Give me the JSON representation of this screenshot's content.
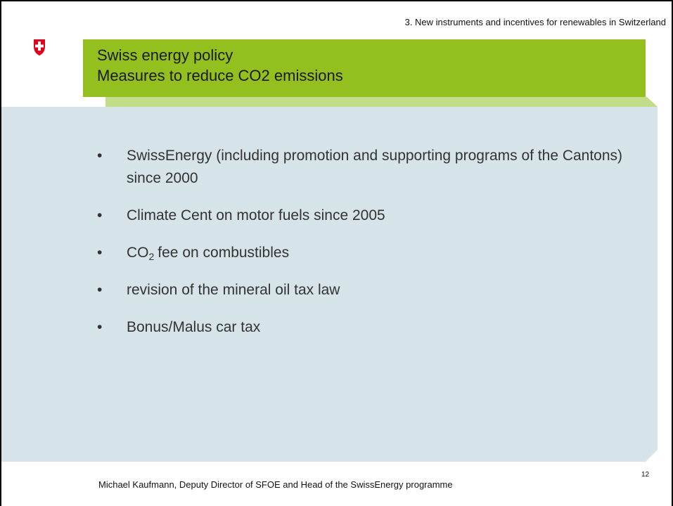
{
  "header": {
    "section": "3. New instruments and incentives for renewables in Switzerland",
    "title_lines": [
      "Swiss energy policy",
      "Measures to reduce CO2 emissions"
    ]
  },
  "bullets": [
    "SwissEnergy (including promotion and supporting programs of the Cantons) since 2000",
    "Climate Cent on motor fuels since 2005",
    {
      "text": "CO",
      "sub": "2",
      "rest": "fee on combustibles"
    },
    "revision of the mineral oil tax law",
    "Bonus/Malus car tax"
  ],
  "footer": {
    "author": "Michael Kaufmann, Deputy Director of SFOE and Head of the SwissEnergy programme",
    "page": "12"
  }
}
